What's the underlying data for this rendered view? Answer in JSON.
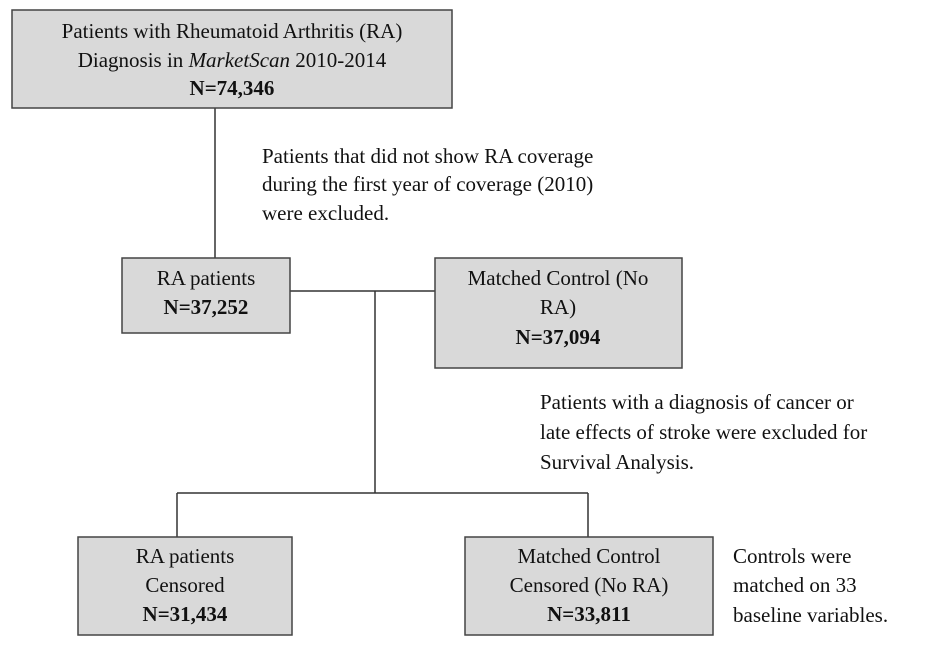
{
  "nodes": [
    {
      "lines": [
        "Patients with Rheumatoid Arthritis (RA)",
        [
          "Diagnosis in",
          "MarketScan",
          "2010-2014"
        ]
      ],
      "count": "N=74,346"
    },
    {
      "lines": [
        "RA patients"
      ],
      "count": "N=37,252"
    },
    {
      "lines": [
        "Matched Control (No",
        "RA)"
      ],
      "count": "N=37,094"
    },
    {
      "lines": [
        "RA patients",
        "Censored"
      ],
      "count": "N=31,434"
    },
    {
      "lines": [
        "Matched Control",
        "Censored (No RA)"
      ],
      "count": "N=33,811"
    }
  ],
  "notes": [
    [
      "Patients that did not show RA coverage",
      "during the first year of coverage (2010)",
      "were excluded."
    ],
    [
      "Patients with a diagnosis of cancer or",
      "late effects of stroke were excluded for",
      "Survival Analysis."
    ],
    [
      "Controls were",
      "matched on 33",
      "baseline variables."
    ]
  ]
}
